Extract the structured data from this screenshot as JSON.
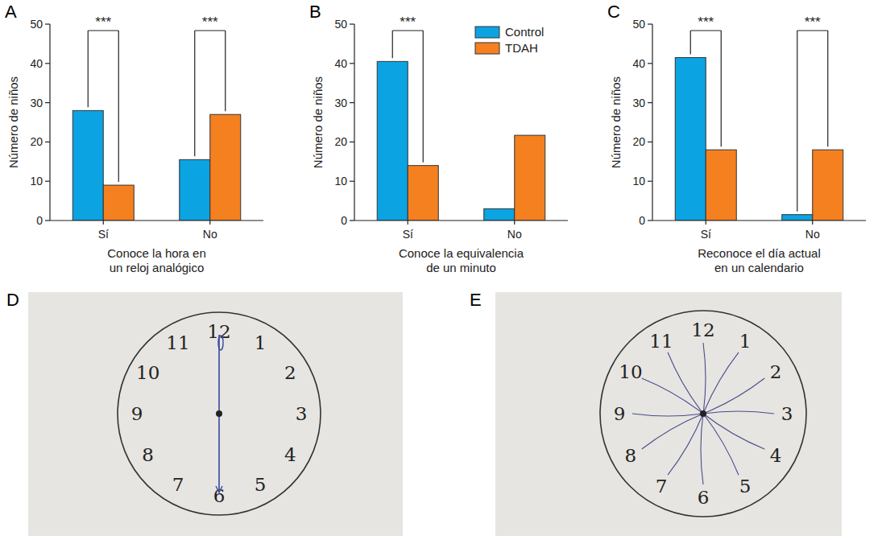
{
  "panel_labels": [
    "A",
    "B",
    "C",
    "D",
    "E"
  ],
  "chart_data": [
    {
      "type": "bar",
      "x_label": "Conoce la hora en un reloj analógico",
      "y_label": "Número de niños",
      "categories": [
        "Sí",
        "No"
      ],
      "series": [
        {
          "color": "#0ba3e2",
          "values": [
            28,
            15.5
          ]
        },
        {
          "color": "#f5801f",
          "values": [
            9,
            27
          ]
        }
      ],
      "ylim": [
        0,
        50
      ],
      "yticks": [
        0,
        10,
        20,
        30,
        40,
        50
      ],
      "annotations": [
        {
          "text": "***",
          "x": "Sí"
        },
        {
          "text": "***",
          "x": "No"
        }
      ]
    },
    {
      "type": "bar",
      "x_label": "Conoce la equivalencia de un minuto",
      "y_label": "Número de niños",
      "categories": [
        "Sí",
        "No"
      ],
      "series": [
        {
          "name": "Control",
          "color": "#0ba3e2",
          "values": [
            40.5,
            3
          ]
        },
        {
          "name": "TDAH",
          "color": "#f5801f",
          "values": [
            14,
            21.7
          ]
        }
      ],
      "ylim": [
        0,
        50
      ],
      "yticks": [
        0,
        10,
        20,
        30,
        40,
        50
      ],
      "legend": "upper right",
      "annotations": [
        {
          "text": "***",
          "x": "Sí"
        }
      ]
    },
    {
      "type": "bar",
      "x_label": "Reconoce el día actual en un calendario",
      "y_label": "Número de niños",
      "categories": [
        "Sí",
        "No"
      ],
      "series": [
        {
          "color": "#0ba3e2",
          "values": [
            41.5,
            1.5
          ]
        },
        {
          "color": "#f5801f",
          "values": [
            18,
            18
          ]
        }
      ],
      "ylim": [
        0,
        50
      ],
      "yticks": [
        0,
        10,
        20,
        30,
        40,
        50
      ],
      "annotations": [
        {
          "text": "***",
          "x": "Sí"
        },
        {
          "text": "***",
          "x": "No"
        }
      ]
    }
  ],
  "drawings": [
    {
      "numbers": [
        "12",
        "1",
        "2",
        "3",
        "4",
        "5",
        "6",
        "7",
        "8",
        "9",
        "10",
        "11"
      ]
    },
    {
      "numbers": [
        "12",
        "1",
        "2",
        "3",
        "4",
        "5",
        "6",
        "7",
        "8",
        "9",
        "10",
        "11"
      ]
    }
  ]
}
